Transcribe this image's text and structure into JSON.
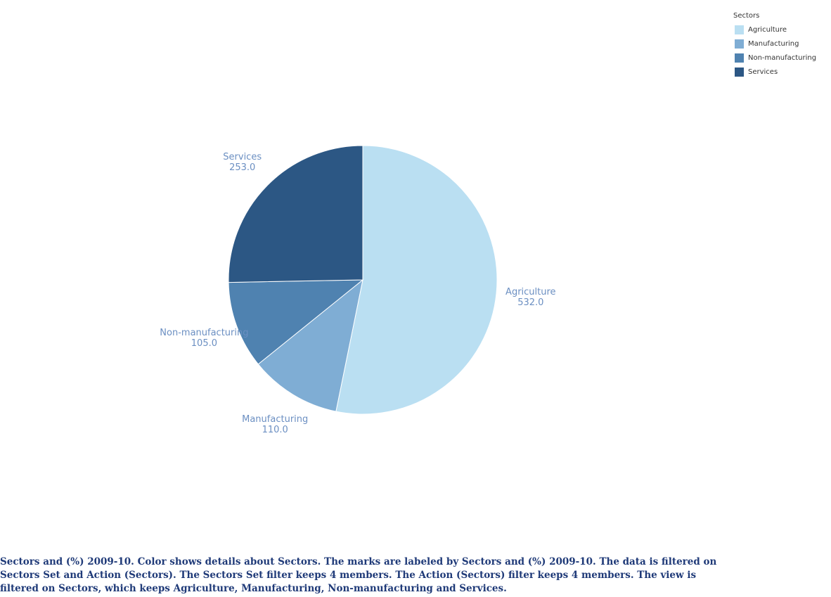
{
  "chart_data": {
    "type": "pie",
    "start": "top",
    "direction": "clockwise",
    "slices": [
      {
        "name": "Agriculture",
        "value": 532.0,
        "label_value": "532.0",
        "color": "#badff2"
      },
      {
        "name": "Manufacturing",
        "value": 110.0,
        "label_value": "110.0",
        "color": "#7fadd4"
      },
      {
        "name": "Non-manufacturing",
        "value": 105.0,
        "label_value": "105.0",
        "color": "#4f82b0"
      },
      {
        "name": "Services",
        "value": 253.0,
        "label_value": "253.0",
        "color": "#2c5784"
      }
    ],
    "label_color": "#6b8fc2",
    "legend": {
      "title": "Sectors",
      "placement": "top-right"
    }
  },
  "caption": {
    "text": "Sectors and (%) 2009-10.  Color shows details about Sectors.  The marks are labeled by Sectors and (%) 2009-10. The data is filtered on Sectors Set and Action (Sectors). The Sectors Set filter keeps 4 members. The Action (Sectors) filter keeps 4 members. The view is filtered on Sectors, which keeps Agriculture, Manufacturing, Non-manufacturing and Services."
  }
}
